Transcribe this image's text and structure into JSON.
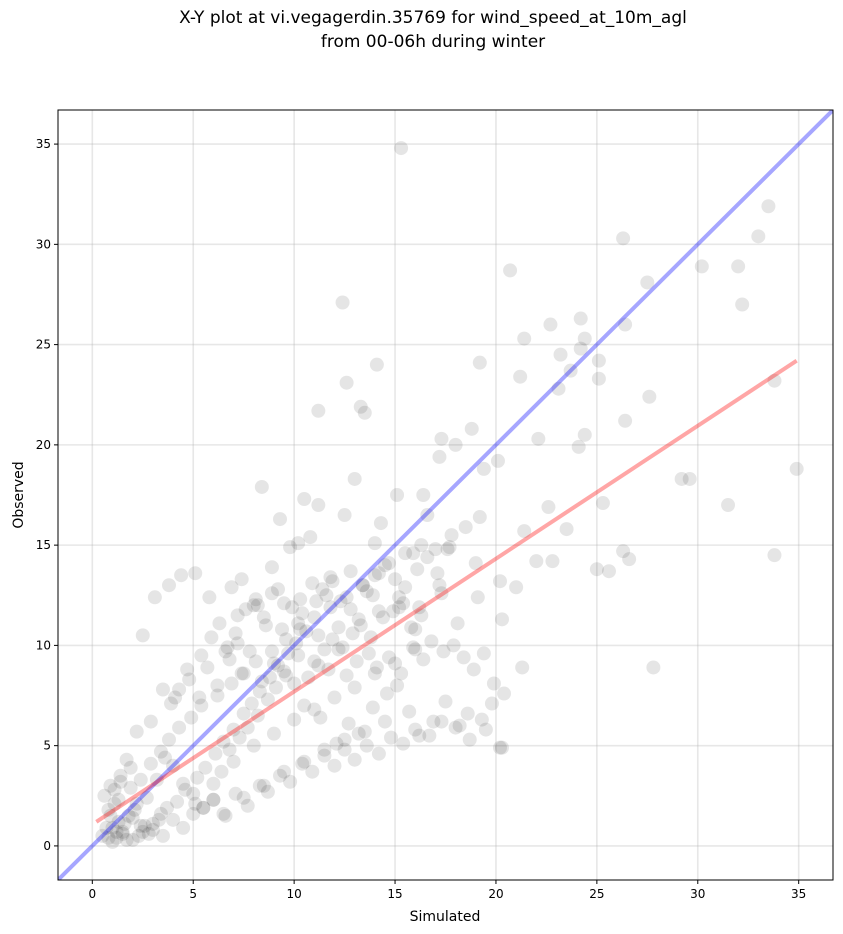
{
  "chart_data": {
    "type": "scatter",
    "title": "X-Y plot at vi.vegagerdin.35769 for wind_speed_at_10m_agl",
    "subtitle": "from 00-06h during winter",
    "xlabel": "Simulated",
    "ylabel": "Observed",
    "xlim": [
      -1.7,
      36.7
    ],
    "ylim": [
      -1.7,
      36.7
    ],
    "xticks": [
      0,
      5,
      10,
      15,
      20,
      25,
      30,
      35
    ],
    "yticks": [
      0,
      5,
      10,
      15,
      20,
      25,
      30,
      35
    ],
    "grid": true,
    "point_color": "#000000",
    "point_alpha": 0.1,
    "lines": [
      {
        "color": "#0000ff",
        "alpha": 0.35,
        "x": [
          -1.7,
          36.7
        ],
        "y": [
          -1.7,
          36.7
        ]
      },
      {
        "color": "#ff0000",
        "alpha": 0.35,
        "x": [
          0.2,
          34.9
        ],
        "y": [
          1.2,
          24.2
        ]
      }
    ],
    "points": {
      "x": [
        15.3,
        26.3,
        33.5,
        33.0,
        20.7,
        27.5,
        30.2,
        32.0,
        32.2,
        12.4,
        21.4,
        24.2,
        26.4,
        22.7,
        24.4,
        23.2,
        24.2,
        25.1,
        23.7,
        12.6,
        13.5,
        14.1,
        23.1,
        25.1,
        27.6,
        21.2,
        13.3,
        11.2,
        33.8,
        26.4,
        17.3,
        19.2,
        22.1,
        24.4,
        29.2,
        29.6,
        31.5,
        33.8,
        34.9,
        27.8,
        26.3,
        26.6,
        25.0,
        25.6,
        25.3,
        22.6,
        21.4,
        20.1,
        19.4,
        8.4,
        9.3,
        10.5,
        11.2,
        13.0,
        15.1,
        16.6,
        18.0,
        18.8,
        17.2,
        16.4,
        14.3,
        12.5,
        10.2,
        8.9,
        7.4,
        6.9,
        5.8,
        5.1,
        4.4,
        3.1,
        2.5,
        3.8,
        9.8,
        10.8,
        11.9,
        14.0,
        15.9,
        17.7,
        19.0,
        20.2,
        21.0,
        20.3,
        19.1,
        18.1,
        17.3,
        16.0,
        15.2,
        14.2,
        13.6,
        12.8,
        11.6,
        11.1,
        10.4,
        9.5,
        8.6,
        8.1,
        7.2,
        6.6,
        5.4,
        4.7,
        4.1,
        3.5,
        2.9,
        2.2,
        1.7,
        1.4,
        1.1,
        0.9,
        0.7,
        0.5,
        1.2,
        1.6,
        2.0,
        2.4,
        2.8,
        3.3,
        3.7,
        4.2,
        4.6,
        5.2,
        5.6,
        6.1,
        6.5,
        7.0,
        7.5,
        7.9,
        8.3,
        8.8,
        9.2,
        9.7,
        10.1,
        10.6,
        11.0,
        11.5,
        11.9,
        12.4,
        12.9,
        13.3,
        13.8,
        14.4,
        14.9,
        15.4,
        15.8,
        16.3,
        16.8,
        17.4,
        17.9,
        18.4,
        18.9,
        19.4,
        19.9,
        20.4,
        0.8,
        1.0,
        1.3,
        1.5,
        1.8,
        2.1,
        2.3,
        2.6,
        3.0,
        3.4,
        0.6,
        0.9,
        1.1,
        1.4,
        1.9,
        2.2,
        2.7,
        3.2,
        3.6,
        4.0,
        4.5,
        5.0,
        5.5,
        6.0,
        6.4,
        6.8,
        7.3,
        7.7,
        8.2,
        8.7,
        9.1,
        9.6,
        10.0,
        10.5,
        11.3,
        12.1,
        12.7,
        13.2,
        13.9,
        14.6,
        15.1,
        15.7,
        16.2,
        16.9,
        17.5,
        18.2,
        18.7,
        19.5,
        20.3,
        5.9,
        6.3,
        6.7,
        7.1,
        7.6,
        8.0,
        8.5,
        8.9,
        9.4,
        9.9,
        10.3,
        10.9,
        11.4,
        11.8,
        12.3,
        12.8,
        13.4,
        13.9,
        14.5,
        15.0,
        15.5,
        16.1,
        16.6,
        17.1,
        17.6,
        3.9,
        4.3,
        4.8,
        5.3,
        5.7,
        6.2,
        6.8,
        7.4,
        7.8,
        8.4,
        9.0,
        9.5,
        10.2,
        10.7,
        11.2,
        11.7,
        12.2,
        12.6,
        13.1,
        13.7,
        14.1,
        14.7,
        15.3,
        15.9,
        16.4,
        2.0,
        2.5,
        3.0,
        3.5,
        4.0,
        4.5,
        5.0,
        5.5,
        6.0,
        6.6,
        7.1,
        7.7,
        8.3,
        8.7,
        9.3,
        9.8,
        10.4,
        10.9,
        11.5,
        12.0,
        12.5,
        13.0,
        13.6,
        14.2,
        14.8,
        15.4,
        16.0,
        16.7,
        17.3,
        18.0,
        18.6,
        19.3,
        19.8,
        20.2,
        21.3,
        22.0,
        22.8,
        23.5,
        24.1,
        1.0,
        1.2,
        1.5,
        1.7,
        0.8,
        1.3,
        1.9,
        2.4,
        2.9,
        3.4,
        3.8,
        4.3,
        4.9,
        5.4,
        6.2,
        6.9,
        7.5,
        8.1,
        8.9,
        9.6,
        10.3,
        11.0,
        11.8,
        12.6,
        13.4,
        14.0,
        14.7,
        15.5,
        16.3,
        17.0,
        17.8,
        18.5,
        19.2,
        5.1,
        6.0,
        7.0,
        8.0,
        9.0,
        10.0,
        11.0,
        12.0,
        13.0,
        14.0,
        15.0,
        16.0,
        6.5,
        7.5,
        8.5,
        9.5,
        10.5,
        11.5,
        12.5,
        13.5,
        14.5,
        7.2,
        8.2,
        9.2,
        10.2,
        11.2,
        12.2,
        13.2,
        14.2,
        15.2,
        16.2,
        17.2
      ],
      "y": [
        34.8,
        30.3,
        31.9,
        30.4,
        28.7,
        28.1,
        28.9,
        28.9,
        27.0,
        27.1,
        25.3,
        26.3,
        26.0,
        26.0,
        25.3,
        24.5,
        24.8,
        24.2,
        23.7,
        23.1,
        21.6,
        24.0,
        22.8,
        23.3,
        22.4,
        23.4,
        21.9,
        21.7,
        23.2,
        21.2,
        20.3,
        24.1,
        20.3,
        20.5,
        18.3,
        18.3,
        17.0,
        14.5,
        18.8,
        8.9,
        14.7,
        14.3,
        13.8,
        13.7,
        17.1,
        16.9,
        15.7,
        19.2,
        18.8,
        17.9,
        16.3,
        17.3,
        17.0,
        18.3,
        17.5,
        16.5,
        20.0,
        20.8,
        19.4,
        17.5,
        16.1,
        16.5,
        15.1,
        13.9,
        13.3,
        12.9,
        12.4,
        13.6,
        13.5,
        12.4,
        10.5,
        13.0,
        14.9,
        15.4,
        13.2,
        15.1,
        14.6,
        14.9,
        14.1,
        13.2,
        12.9,
        11.3,
        12.4,
        11.1,
        12.6,
        10.8,
        11.9,
        13.6,
        12.7,
        11.8,
        12.5,
        12.2,
        11.6,
        12.1,
        11.0,
        12.3,
        10.1,
        9.7,
        9.5,
        8.8,
        7.4,
        7.8,
        6.2,
        5.7,
        4.3,
        3.2,
        2.1,
        1.5,
        0.9,
        0.5,
        0.7,
        1.1,
        1.4,
        1.0,
        0.6,
        1.3,
        1.9,
        2.2,
        2.8,
        3.4,
        3.9,
        4.6,
        5.2,
        5.8,
        6.6,
        7.1,
        7.7,
        8.4,
        9.0,
        9.6,
        10.1,
        10.7,
        9.2,
        9.8,
        10.3,
        9.9,
        10.6,
        11.0,
        10.4,
        11.4,
        11.7,
        12.1,
        10.9,
        11.5,
        10.2,
        9.7,
        10.0,
        9.4,
        8.8,
        9.6,
        8.1,
        7.6,
        0.4,
        0.9,
        1.2,
        0.7,
        1.5,
        1.8,
        0.5,
        1.0,
        0.8,
        1.6,
        2.5,
        3.0,
        2.8,
        3.5,
        3.9,
        2.1,
        2.4,
        3.3,
        4.4,
        4.0,
        3.1,
        2.6,
        1.9,
        2.3,
        3.7,
        4.8,
        5.4,
        5.9,
        6.5,
        7.3,
        7.9,
        8.5,
        8.1,
        7.0,
        6.4,
        5.1,
        6.1,
        5.6,
        6.9,
        7.6,
        8.0,
        6.7,
        5.5,
        6.2,
        7.2,
        6.0,
        5.3,
        5.8,
        4.9,
        10.4,
        11.1,
        9.9,
        10.6,
        11.8,
        12.0,
        11.4,
        12.6,
        10.8,
        11.9,
        12.3,
        13.1,
        12.8,
        13.4,
        12.2,
        13.7,
        13.0,
        12.5,
        14.0,
        13.3,
        12.9,
        13.8,
        14.4,
        13.6,
        14.8,
        7.1,
        7.8,
        8.3,
        7.4,
        8.9,
        8.0,
        9.3,
        8.6,
        9.7,
        8.2,
        9.1,
        8.7,
        9.5,
        8.4,
        9.0,
        8.8,
        9.8,
        8.5,
        9.2,
        9.6,
        8.9,
        9.4,
        8.6,
        9.9,
        9.3,
        0.3,
        0.7,
        1.1,
        0.5,
        1.3,
        0.9,
        1.6,
        1.9,
        2.3,
        1.5,
        2.6,
        2.0,
        3.0,
        2.7,
        3.5,
        3.2,
        4.1,
        3.7,
        4.5,
        4.0,
        4.8,
        4.3,
        5.0,
        4.6,
        5.4,
        5.1,
        5.8,
        5.5,
        6.2,
        5.9,
        6.6,
        6.3,
        7.1,
        4.9,
        8.9,
        14.2,
        14.2,
        15.8,
        19.9,
        0.2,
        0.4,
        0.6,
        0.3,
        1.8,
        2.3,
        2.9,
        3.3,
        4.1,
        4.7,
        5.3,
        5.9,
        6.4,
        7.0,
        7.5,
        8.1,
        8.6,
        9.2,
        9.7,
        10.3,
        10.8,
        11.4,
        11.9,
        12.4,
        13.0,
        13.5,
        14.1,
        14.6,
        15.0,
        14.8,
        15.5,
        15.9,
        16.4,
        2.1,
        3.1,
        4.2,
        5.0,
        5.6,
        6.3,
        6.8,
        7.4,
        7.9,
        8.6,
        9.1,
        9.8,
        1.6,
        2.4,
        3.0,
        3.7,
        4.2,
        4.8,
        5.3,
        5.7,
        6.2,
        11.5,
        12.0,
        12.8,
        11.1,
        10.5,
        10.9,
        11.3,
        11.7,
        12.4,
        11.9,
        13.0
      ]
    }
  }
}
